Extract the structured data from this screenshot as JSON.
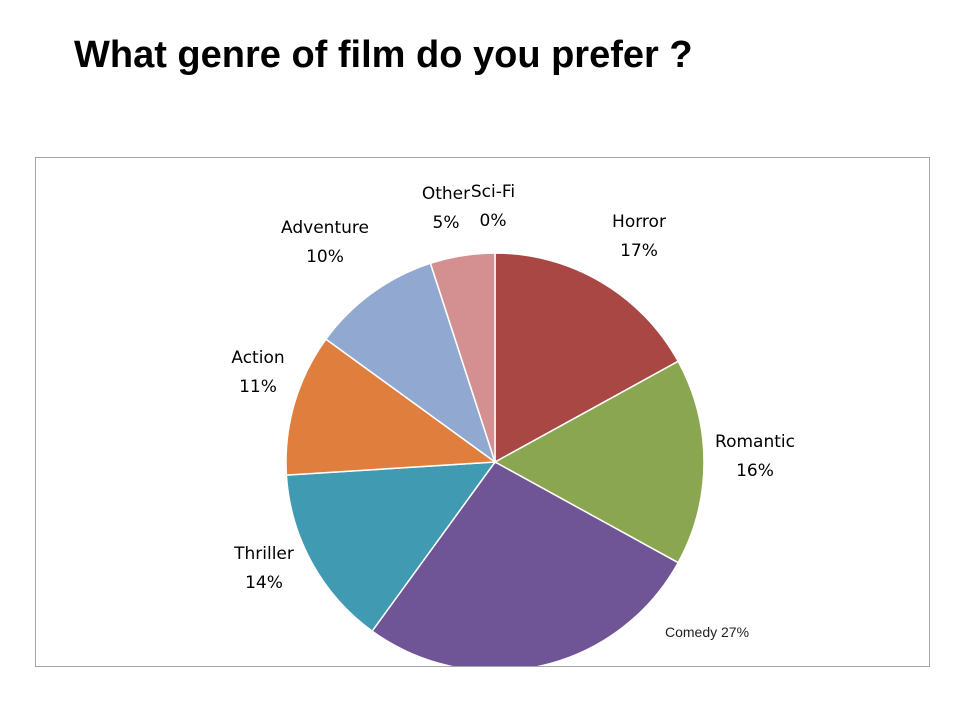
{
  "slide": {
    "title": "What genre of film do you prefer ?"
  },
  "chart_data": {
    "type": "pie",
    "title": "",
    "slices": [
      {
        "category": "Horror",
        "value": 17,
        "label_pct": "17%",
        "color": "#a84744"
      },
      {
        "category": "Romantic",
        "value": 16,
        "label_pct": "16%",
        "color": "#8aa651"
      },
      {
        "category": "Comedy",
        "value": 27,
        "label_pct": "27%",
        "color": "#6f5596",
        "inline_label": "Comedy 27%"
      },
      {
        "category": "Thriller",
        "value": 14,
        "label_pct": "14%",
        "color": "#3f9ab2"
      },
      {
        "category": "Action",
        "value": 11,
        "label_pct": "11%",
        "color": "#e07f3d"
      },
      {
        "category": "Adventure",
        "value": 10,
        "label_pct": "10%",
        "color": "#91a9d1"
      },
      {
        "category": "Other",
        "value": 5,
        "label_pct": "5%",
        "color": "#d49090"
      },
      {
        "category": "Sci-Fi",
        "value": 0,
        "label_pct": "0%",
        "color": "#b9cde5"
      }
    ],
    "legend": "none"
  }
}
